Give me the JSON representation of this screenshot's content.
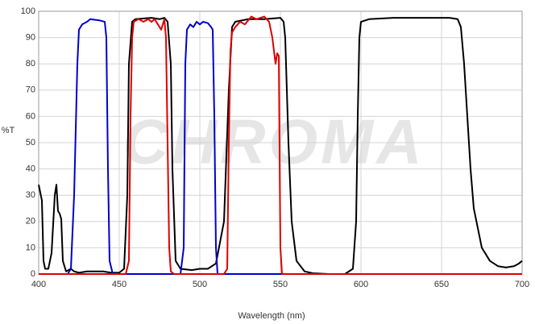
{
  "chart_data": {
    "type": "line",
    "watermark": "CHROMA",
    "xlabel": "Wavelength (nm)",
    "ylabel": "%T",
    "xlim": [
      400,
      700
    ],
    "ylim": [
      0,
      100
    ],
    "xticks": [
      400,
      450,
      500,
      550,
      600,
      650,
      700
    ],
    "yticks": [
      0,
      10,
      20,
      30,
      40,
      50,
      60,
      70,
      80,
      90,
      100
    ],
    "grid": true,
    "series": [
      {
        "color": "#000000",
        "x": [
          400,
          402,
          403,
          404,
          406,
          408,
          410,
          411,
          412,
          413,
          414,
          415,
          417,
          420,
          422,
          425,
          430,
          435,
          440,
          445,
          450,
          453,
          455,
          456,
          458,
          460,
          470,
          475,
          478,
          480,
          482,
          483,
          485,
          488,
          495,
          500,
          505,
          510,
          515,
          518,
          520,
          522,
          530,
          540,
          550,
          552,
          553,
          555,
          557,
          560,
          565,
          570,
          580,
          590,
          595,
          597,
          598,
          599,
          600,
          605,
          620,
          640,
          655,
          660,
          662,
          664,
          666,
          668,
          670,
          675,
          680,
          685,
          690,
          695,
          698,
          700
        ],
        "values": [
          34,
          28,
          5,
          2,
          2,
          8,
          30,
          34,
          24,
          23,
          21,
          5,
          1,
          2,
          1,
          0.5,
          1,
          1,
          1,
          0.5,
          0.5,
          2,
          30,
          80,
          96,
          97,
          97.5,
          97,
          97.5,
          96,
          80,
          40,
          5,
          2,
          1.5,
          2,
          2,
          4,
          20,
          70,
          94,
          96,
          97,
          97,
          97.5,
          96,
          90,
          50,
          20,
          5,
          1,
          0.3,
          0,
          0,
          2,
          20,
          60,
          90,
          96,
          97,
          97.5,
          97.5,
          97.5,
          97,
          94,
          80,
          60,
          40,
          25,
          10,
          5,
          3,
          2.5,
          3,
          4,
          5
        ]
      },
      {
        "color": "#0000cc",
        "x": [
          400,
          418,
          420,
          422,
          424,
          425,
          427,
          430,
          432,
          438,
          441,
          442,
          443,
          444,
          446,
          488,
          490,
          491,
          492,
          494,
          496,
          498,
          500,
          502,
          505,
          507,
          508,
          509,
          510,
          511,
          700
        ],
        "values": [
          0,
          0,
          2,
          30,
          80,
          93,
          95,
          96,
          97,
          96.5,
          96,
          90,
          40,
          5,
          0,
          0,
          10,
          80,
          93,
          95,
          94,
          96,
          95,
          96,
          95.5,
          94,
          93,
          60,
          10,
          0,
          0
        ]
      },
      {
        "color": "#dd0000",
        "x": [
          400,
          454,
          456,
          457,
          458,
          459,
          462,
          465,
          468,
          470,
          472,
          474,
          476,
          478,
          479,
          480,
          481,
          482,
          484,
          515,
          517,
          518,
          519,
          520,
          522,
          525,
          528,
          532,
          535,
          540,
          543,
          545,
          547,
          548,
          549,
          550,
          551,
          700
        ],
        "values": [
          0,
          0,
          5,
          60,
          90,
          96,
          97,
          96,
          97,
          96,
          97,
          95,
          93,
          97,
          90,
          50,
          10,
          1,
          0,
          0,
          2,
          50,
          85,
          92,
          94,
          96,
          95,
          98,
          97,
          98,
          96,
          90,
          80,
          84,
          83,
          10,
          0,
          0
        ]
      }
    ]
  }
}
